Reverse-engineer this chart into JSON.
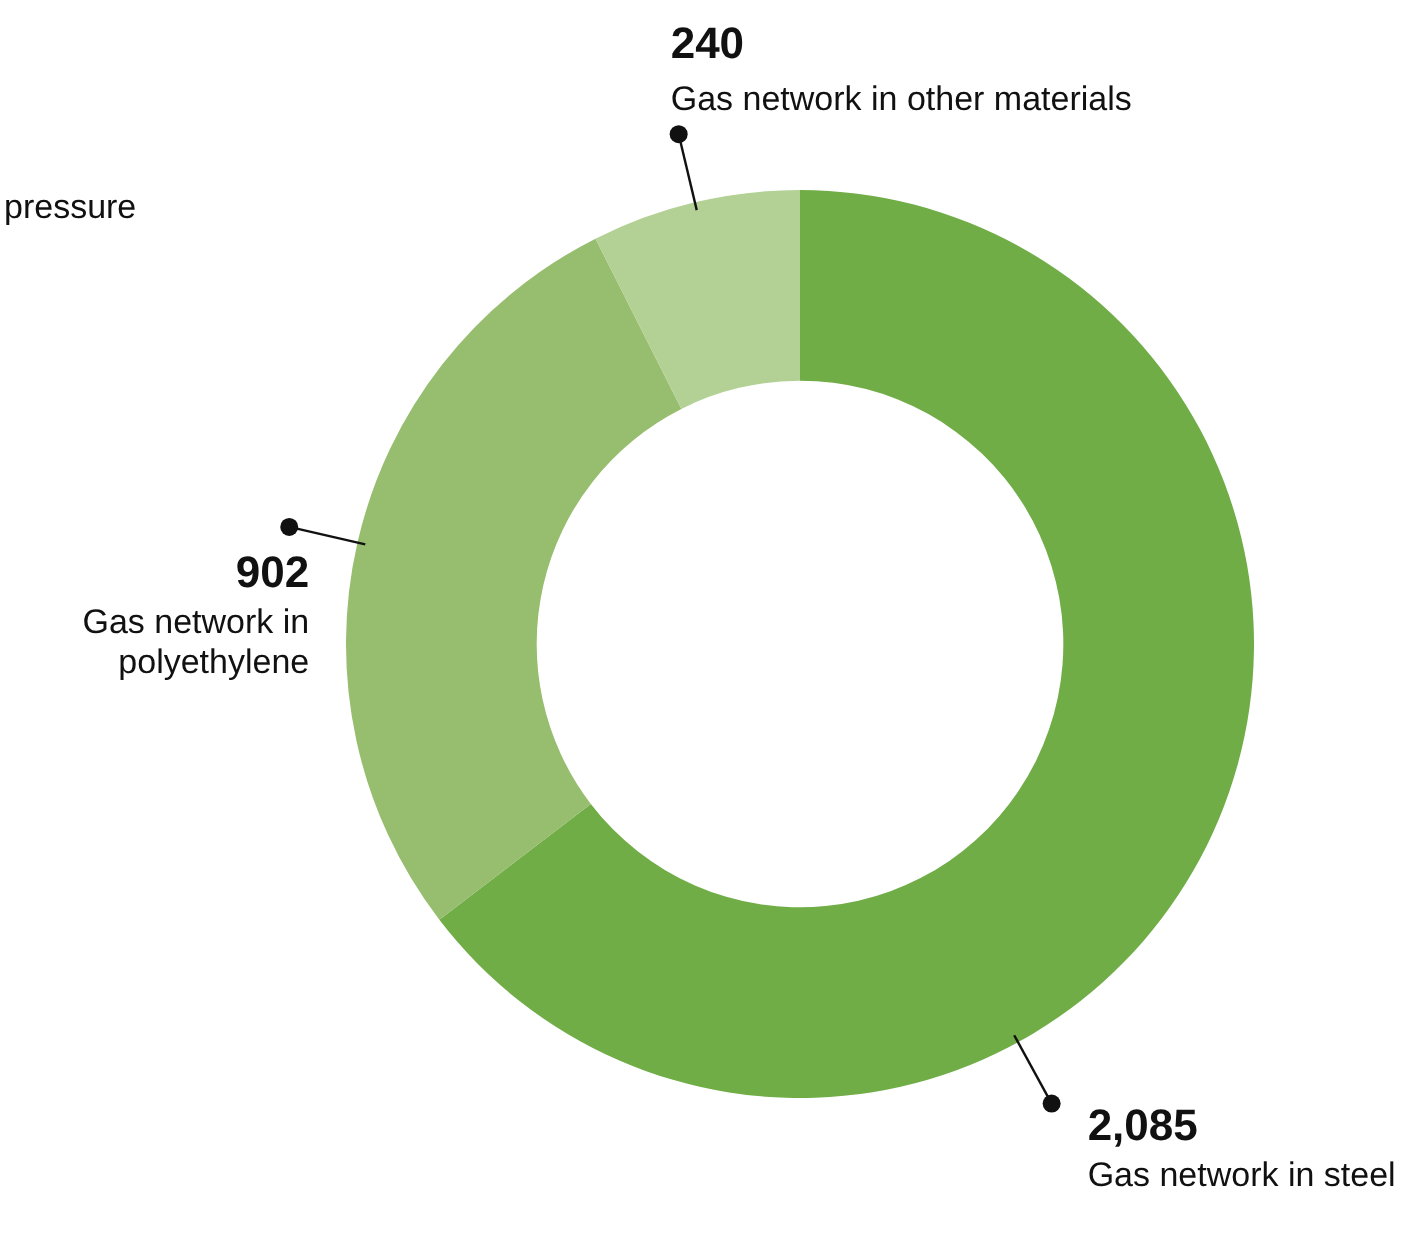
{
  "chart_data": {
    "type": "donut",
    "categories": [
      "Gas network in steel",
      "Gas network in polyethylene",
      "Gas network in other materials"
    ],
    "values": [
      2085,
      902,
      240
    ],
    "colors": [
      "#70ad47",
      "#97bd6e",
      "#b3d194"
    ],
    "value_labels": [
      "2,085",
      "902",
      "240"
    ],
    "annotations": [
      "pressure"
    ]
  }
}
